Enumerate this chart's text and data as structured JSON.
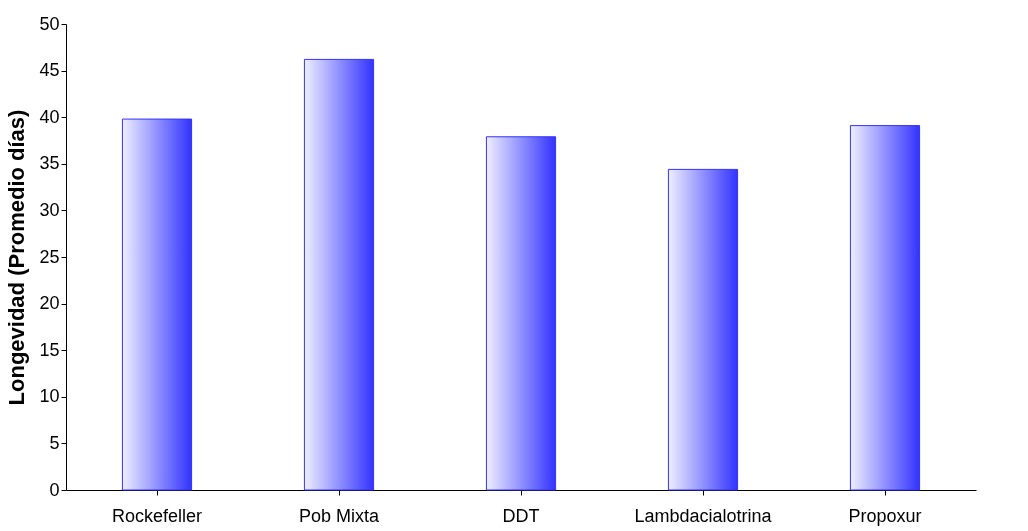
{
  "chart_data": {
    "type": "bar",
    "ylabel": "Longevidad (Promedio días)",
    "categories": [
      "Rockefeller",
      "Pob Mixta",
      "DDT",
      "Lambdacialotrina",
      "Propoxur"
    ],
    "values": [
      39.8,
      46.2,
      37.9,
      34.4,
      39.1
    ],
    "color": "#3333ff",
    "ylim": [
      0,
      50
    ],
    "yticks": [
      0,
      5,
      10,
      15,
      20,
      25,
      30,
      35,
      40,
      45,
      50
    ],
    "grid": false
  }
}
